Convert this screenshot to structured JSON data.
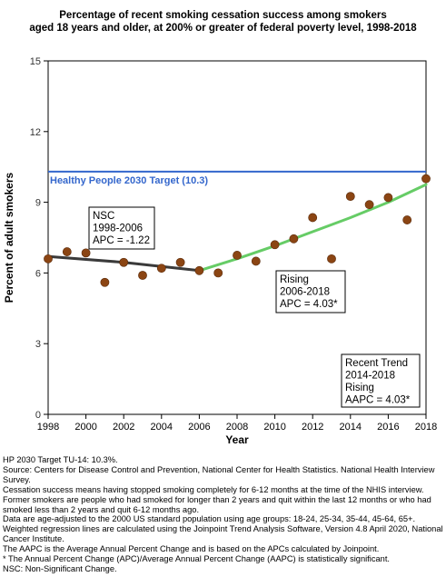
{
  "chart_data": {
    "type": "scatter",
    "title": "Percentage of recent smoking cessation success among  smokers aged 18 years and older, at 200% or greater of federal poverty level, 1998-2018",
    "title_lines": [
      "Percentage of recent smoking cessation success among  smokers",
      "aged 18 years and older, at 200% or greater of federal poverty level, 1998-2018"
    ],
    "xlabel": "Year",
    "ylabel": "Percent of adult smokers",
    "xlim": [
      1998,
      2018
    ],
    "ylim": [
      0,
      15
    ],
    "xticks": [
      1998,
      2000,
      2002,
      2004,
      2006,
      2008,
      2010,
      2012,
      2014,
      2016,
      2018
    ],
    "yticks": [
      0,
      3,
      6,
      9,
      12,
      15
    ],
    "grid": false,
    "points": {
      "x": [
        1998,
        1999,
        2000,
        2001,
        2002,
        2003,
        2004,
        2005,
        2006,
        2007,
        2008,
        2009,
        2010,
        2011,
        2012,
        2013,
        2014,
        2015,
        2016,
        2017,
        2018
      ],
      "y": [
        6.6,
        6.9,
        6.85,
        5.6,
        6.45,
        5.9,
        6.2,
        6.45,
        6.1,
        6.0,
        6.75,
        6.5,
        7.2,
        7.45,
        8.35,
        6.6,
        9.25,
        8.9,
        9.2,
        8.25,
        10.0
      ],
      "color": "#8B4513"
    },
    "target": {
      "label": "Healthy People 2030 Target (10.3)",
      "value": 10.3,
      "color": "#3366CC"
    },
    "trend_lines": [
      {
        "name": "NSC",
        "x": [
          1998,
          2002,
          2006
        ],
        "y": [
          6.7,
          6.45,
          6.1
        ],
        "color": "#3a3a3a"
      },
      {
        "name": "Rising",
        "x": [
          2006,
          2008,
          2010,
          2012,
          2014,
          2016,
          2018
        ],
        "y": [
          6.1,
          6.6,
          7.15,
          7.75,
          8.35,
          9.0,
          9.75
        ],
        "color": "#66CC66"
      }
    ],
    "annotations": [
      {
        "lines": [
          "NSC",
          "1998-2006",
          "APC = -1.22"
        ]
      },
      {
        "lines": [
          "Rising",
          "2006-2018",
          "APC =  4.03*"
        ]
      },
      {
        "lines": [
          "Recent Trend",
          "2014-2018",
          "Rising",
          "AAPC =  4.03*"
        ]
      }
    ]
  },
  "notes": [
    "HP 2030 Target TU-14: 10.3%.",
    "Source: Centers for Disease Control and Prevention, National Center for Health Statistics. National Health Interview Survey.",
    "Cessation success means having stopped smoking completely for 6-12 months at the time of the NHIS interview. Former smokers are people who had smoked for longer than 2 years and quit within the last 12 months or who had smoked less than 2 years and quit 6-12 months ago.",
    "Data are age-adjusted to the 2000 US standard population using age groups: 18-24, 25-34, 35-44, 45-64, 65+.",
    "Weighted regression lines are calculated using the Joinpoint Trend Analysis Software, Version 4.8 April 2020, National Cancer Institute.",
    "The AAPC is the Average Annual Percent Change and is based on the APCs calculated by Joinpoint.",
    "* The Annual Percent Change (APC)/Average Annual Percent Change (AAPC) is statistically significant.",
    "NSC: Non-Significant Change."
  ]
}
